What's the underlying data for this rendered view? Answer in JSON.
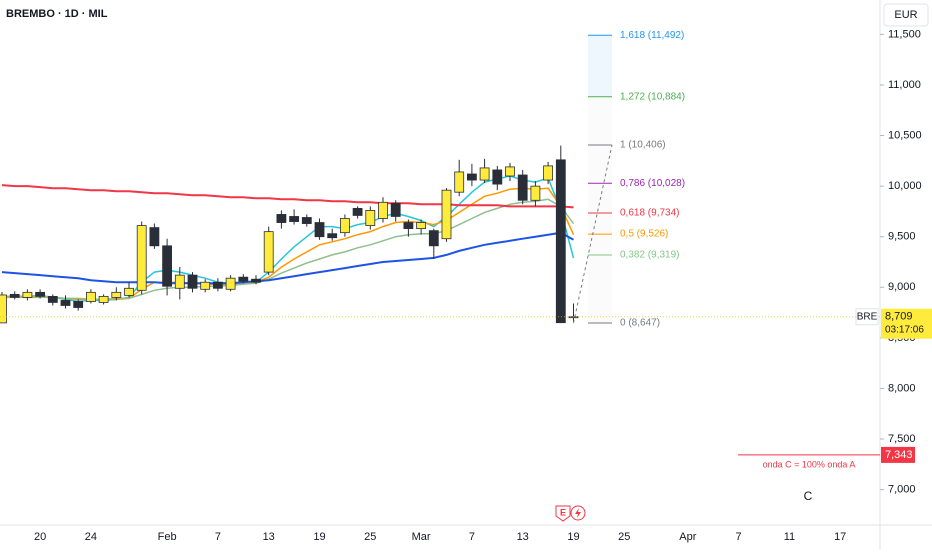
{
  "chart_data": {
    "type": "candlestick",
    "title": "BREMBO · 1D · MIL",
    "currency": "EUR",
    "categories": [
      null,
      null,
      null,
      "20",
      null,
      null,
      null,
      "24",
      null,
      null,
      null,
      null,
      null,
      "Feb",
      null,
      null,
      null,
      "7",
      null,
      null,
      null,
      "13",
      null,
      null,
      null,
      "19",
      null,
      null,
      null,
      "25",
      null,
      null,
      null,
      "Mar",
      null,
      null,
      null,
      "7",
      null,
      null,
      null,
      "13",
      null,
      null,
      null,
      "19",
      null,
      null,
      null,
      "25",
      null,
      null,
      null,
      null,
      "Apr",
      null,
      null,
      null,
      "7",
      null,
      null,
      null,
      "11",
      null,
      null,
      null,
      "17"
    ],
    "open": [
      8.648,
      8.93,
      8.9,
      8.95,
      8.91,
      8.87,
      8.86,
      8.86,
      8.85,
      8.9,
      8.92,
      8.97,
      9.59,
      9.41,
      8.99,
      9.12,
      8.98,
      9.05,
      8.98,
      9.1,
      9.08,
      9.15,
      9.72,
      9.7,
      9.69,
      9.64,
      9.53,
      9.54,
      9.78,
      9.61,
      9.68,
      9.83,
      9.64,
      9.58,
      9.56,
      9.48,
      9.94,
      10.12,
      10.06,
      10.16,
      10.1,
      10.11,
      9.86,
      10.06,
      10.26,
      8.7,
      null,
      null,
      null,
      null,
      null,
      null,
      null,
      null,
      null,
      null,
      null,
      null,
      null,
      null,
      null,
      null,
      null,
      null,
      null,
      null,
      null
    ],
    "high": [
      8.953,
      8.96,
      8.98,
      8.98,
      8.93,
      8.92,
      8.88,
      8.98,
      8.93,
      9.0,
      9.05,
      9.65,
      9.63,
      9.48,
      9.2,
      9.15,
      9.08,
      9.09,
      9.12,
      9.13,
      9.12,
      9.6,
      9.76,
      9.77,
      9.72,
      9.68,
      9.58,
      9.72,
      9.8,
      9.8,
      9.89,
      9.86,
      9.67,
      9.67,
      9.58,
      9.98,
      10.26,
      10.22,
      10.27,
      10.2,
      10.23,
      10.16,
      10.05,
      10.24,
      10.4,
      8.84,
      null,
      null,
      null,
      null,
      null,
      null,
      null,
      null,
      null,
      null,
      null,
      null,
      null,
      null,
      null,
      null,
      null,
      null,
      null,
      null,
      null
    ],
    "low": [
      8.648,
      8.88,
      8.87,
      8.89,
      8.82,
      8.79,
      8.77,
      8.84,
      8.83,
      8.87,
      8.9,
      8.93,
      9.38,
      8.92,
      8.88,
      8.95,
      8.95,
      8.96,
      8.96,
      9.04,
      9.03,
      9.12,
      9.58,
      9.62,
      9.6,
      9.47,
      9.46,
      9.5,
      9.68,
      9.57,
      9.64,
      9.65,
      9.5,
      9.52,
      9.28,
      9.45,
      9.9,
      10.0,
      10.03,
      9.96,
      10.05,
      9.82,
      9.8,
      10.02,
      8.647,
      8.66,
      null,
      null,
      null,
      null,
      null,
      null,
      null,
      null,
      null,
      null,
      null,
      null,
      null,
      null,
      null,
      null,
      null,
      null,
      null,
      null,
      null
    ],
    "close": [
      8.924,
      8.9,
      8.95,
      8.91,
      8.85,
      8.82,
      8.8,
      8.95,
      8.91,
      8.95,
      8.99,
      9.61,
      9.41,
      9.01,
      9.12,
      8.99,
      9.05,
      8.99,
      9.09,
      9.06,
      9.05,
      9.55,
      9.64,
      9.65,
      9.63,
      9.5,
      9.49,
      9.68,
      9.71,
      9.76,
      9.84,
      9.7,
      9.58,
      9.64,
      9.41,
      9.96,
      10.14,
      10.06,
      10.18,
      10.02,
      10.19,
      9.86,
      10.0,
      10.2,
      8.65,
      8.709,
      null,
      null,
      null,
      null,
      null,
      null,
      null,
      null,
      null,
      null,
      null,
      null,
      null,
      null,
      null,
      null,
      null,
      null,
      null,
      null,
      null
    ],
    "up_color": "#ffeb3b",
    "down_color": "#2a2e39",
    "moving_averages": [
      {
        "color": "#26c6da",
        "values": [
          8.9,
          8.91,
          8.91,
          8.92,
          8.9,
          8.88,
          8.86,
          8.87,
          8.87,
          8.88,
          8.9,
          9.05,
          9.15,
          9.17,
          9.15,
          9.12,
          9.09,
          9.05,
          9.04,
          9.05,
          9.05,
          9.15,
          9.28,
          9.4,
          9.5,
          9.6,
          9.6,
          9.58,
          9.62,
          9.64,
          9.7,
          9.73,
          9.7,
          9.66,
          9.6,
          9.7,
          9.82,
          9.94,
          10.04,
          10.07,
          10.1,
          10.06,
          10.04,
          10.08,
          9.76,
          9.29,
          null,
          null,
          null,
          null,
          null,
          null,
          null,
          null,
          null,
          null,
          null,
          null,
          null,
          null,
          null,
          null,
          null,
          null,
          null,
          null,
          null
        ]
      },
      {
        "color": "#ff9800",
        "values": [
          8.91,
          8.91,
          8.91,
          8.91,
          8.9,
          8.89,
          8.88,
          8.88,
          8.88,
          8.88,
          8.89,
          8.98,
          9.05,
          9.05,
          9.05,
          9.04,
          9.03,
          9.03,
          9.03,
          9.04,
          9.05,
          9.1,
          9.2,
          9.28,
          9.35,
          9.42,
          9.45,
          9.48,
          9.52,
          9.55,
          9.6,
          9.64,
          9.65,
          9.64,
          9.62,
          9.66,
          9.74,
          9.82,
          9.9,
          9.93,
          9.97,
          9.98,
          9.97,
          9.98,
          9.8,
          9.52,
          null,
          null,
          null,
          null,
          null,
          null,
          null,
          null,
          null,
          null,
          null,
          null,
          null,
          null,
          null,
          null,
          null,
          null,
          null,
          null,
          null
        ]
      },
      {
        "color": "#8fbf8f",
        "values": [
          8.9,
          8.9,
          8.9,
          8.9,
          8.9,
          8.89,
          8.89,
          8.88,
          8.88,
          8.89,
          8.89,
          8.93,
          8.97,
          8.99,
          9.0,
          9.0,
          9.01,
          9.01,
          9.02,
          9.03,
          9.04,
          9.08,
          9.14,
          9.19,
          9.24,
          9.28,
          9.32,
          9.35,
          9.39,
          9.42,
          9.46,
          9.5,
          9.52,
          9.53,
          9.53,
          9.56,
          9.62,
          9.68,
          9.74,
          9.78,
          9.82,
          9.84,
          9.85,
          9.87,
          9.8,
          9.63,
          null,
          null,
          null,
          null,
          null,
          null,
          null,
          null,
          null,
          null,
          null,
          null,
          null,
          null,
          null,
          null,
          null,
          null,
          null,
          null,
          null
        ]
      },
      {
        "color": "#f23645",
        "values": [
          10.01,
          10.0,
          10.0,
          9.99,
          9.98,
          9.98,
          9.97,
          9.96,
          9.96,
          9.95,
          9.95,
          9.94,
          9.93,
          9.93,
          9.92,
          9.91,
          9.91,
          9.9,
          9.89,
          9.89,
          9.88,
          9.88,
          9.87,
          9.87,
          9.86,
          9.86,
          9.85,
          9.85,
          9.84,
          9.84,
          9.83,
          9.83,
          9.83,
          9.82,
          9.82,
          9.82,
          9.81,
          9.81,
          9.81,
          9.81,
          9.8,
          9.8,
          9.8,
          9.8,
          9.8,
          9.79,
          null,
          null,
          null,
          null,
          null,
          null,
          null,
          null,
          null,
          null,
          null,
          null,
          null,
          null,
          null,
          null,
          null,
          null,
          null,
          null,
          null
        ]
      },
      {
        "color": "#1e53e5",
        "values": [
          9.15,
          9.14,
          9.13,
          9.12,
          9.11,
          9.1,
          9.09,
          9.07,
          9.06,
          9.05,
          9.05,
          9.05,
          9.05,
          9.04,
          9.04,
          9.04,
          9.04,
          9.04,
          9.04,
          9.05,
          9.06,
          9.07,
          9.09,
          9.11,
          9.13,
          9.15,
          9.17,
          9.19,
          9.21,
          9.23,
          9.25,
          9.26,
          9.27,
          9.28,
          9.29,
          9.32,
          9.36,
          9.39,
          9.42,
          9.44,
          9.46,
          9.48,
          9.5,
          9.52,
          9.54,
          9.47,
          null,
          null,
          null,
          null,
          null,
          null,
          null,
          null,
          null,
          null,
          null,
          null,
          null,
          null,
          null,
          null,
          null,
          null,
          null,
          null,
          null
        ]
      }
    ],
    "ylim": [
      6.65,
      11.84
    ],
    "yticks": [
      {
        "value": 7,
        "label": "7,000"
      },
      {
        "value": 7.5,
        "label": "7,500"
      },
      {
        "value": 8,
        "label": "8,000"
      },
      {
        "value": 8.5,
        "label": "8,500"
      },
      {
        "value": 9,
        "label": "9,000"
      },
      {
        "value": 9.5,
        "label": "9,500"
      },
      {
        "value": 10,
        "label": "10,000"
      },
      {
        "value": 10.5,
        "label": "10,500"
      },
      {
        "value": 11,
        "label": "11,000"
      },
      {
        "value": 11.5,
        "label": "11,500"
      }
    ],
    "grid": false,
    "fib_levels": [
      {
        "label": "1,618 (11,492)",
        "price": 11.492,
        "color": "#2196f3"
      },
      {
        "label": "1,272 (10,884)",
        "price": 10.884,
        "color": "#4caf50"
      },
      {
        "label": "1 (10,406)",
        "price": 10.406,
        "color": "#787b86"
      },
      {
        "label": "0,786 (10,028)",
        "price": 10.028,
        "color": "#9c27b0"
      },
      {
        "label": "0,618 (9,734)",
        "price": 9.734,
        "color": "#f23645"
      },
      {
        "label": "0,5 (9,526)",
        "price": 9.526,
        "color": "#ff9800"
      },
      {
        "label": "0,382 (9,319)",
        "price": 9.319,
        "color": "#81c784"
      },
      {
        "label": "0 (8,647)",
        "price": 8.647,
        "color": "#787b86"
      }
    ],
    "last_price": {
      "value": 8.709,
      "label": "8,709",
      "color": "#ffeb3b"
    },
    "countdown": "03:17:06",
    "symbol_tag": "BRE",
    "target": {
      "value": 7.343,
      "label": "7,343",
      "note": "onda C = 100% onda A",
      "color": "#f23645"
    },
    "wave_label": "C",
    "event_marker": "E"
  }
}
